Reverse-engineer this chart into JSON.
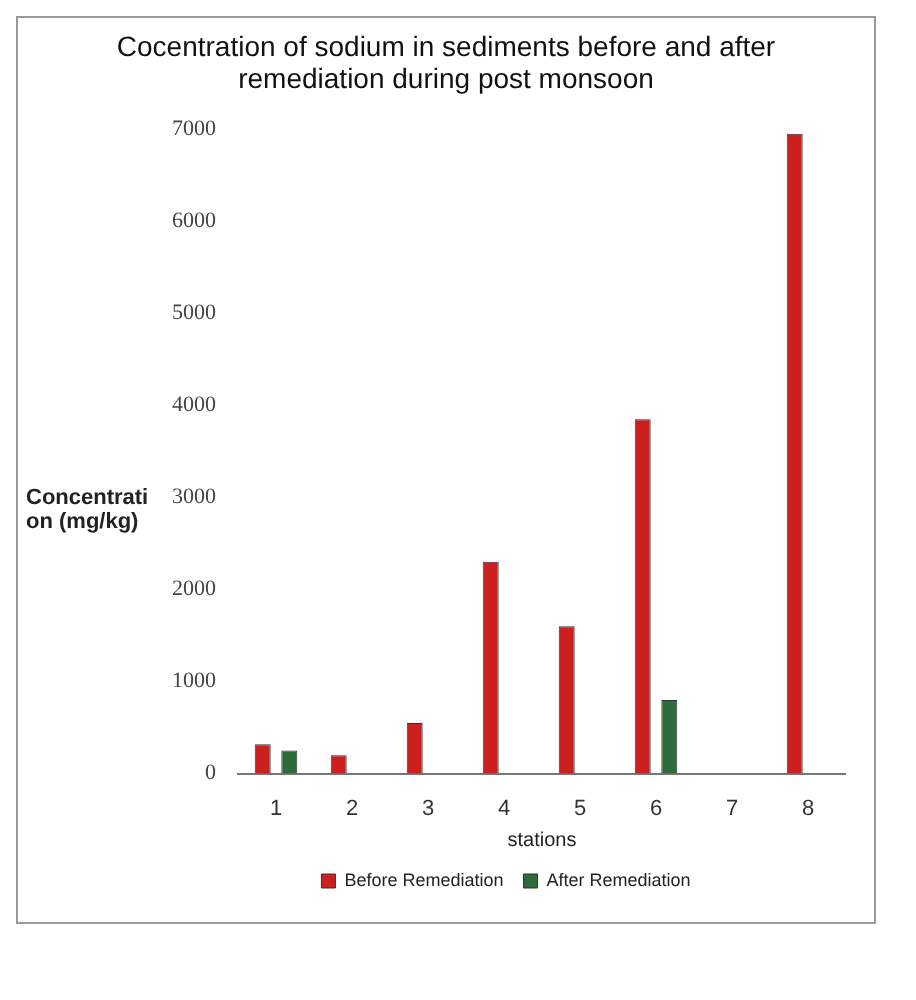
{
  "chart_data": {
    "type": "bar",
    "title": "Cocentration of sodium in sediments before and after remediation during post monsoon",
    "xlabel": "stations",
    "ylabel": "Concentrati on (mg/kg)",
    "categories": [
      "1",
      "2",
      "3",
      "4",
      "5",
      "6",
      "7",
      "8"
    ],
    "series": [
      {
        "name": "Before Remediation",
        "color": "#cc2020",
        "values": [
          320,
          200,
          550,
          2300,
          1600,
          3850,
          null,
          6950
        ]
      },
      {
        "name": "After Remediation",
        "color": "#2e6b3a",
        "values": [
          250,
          null,
          null,
          null,
          null,
          800,
          null,
          null
        ]
      }
    ],
    "ylim": [
      0,
      7000
    ],
    "yticks": [
      0,
      1000,
      2000,
      3000,
      4000,
      5000,
      6000,
      7000
    ],
    "grid": false,
    "legend": "bottom"
  }
}
